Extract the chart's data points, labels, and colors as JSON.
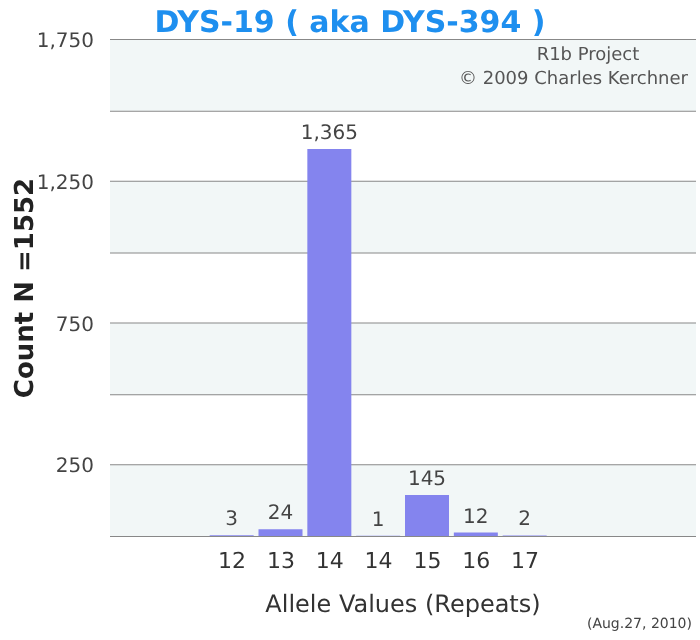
{
  "chart_data": {
    "type": "bar",
    "title": "DYS-19 ( aka DYS-394 )",
    "xlabel": "Allele Values (Repeats)",
    "ylabel": "Count N =1552",
    "annotations": [
      "R1b Project",
      "© 2009 Charles Kerchner",
      "(Aug.27, 2010)"
    ],
    "categories": [
      null,
      null,
      "12",
      "13",
      "14",
      "14",
      "15",
      "16",
      "17",
      null,
      null,
      null
    ],
    "values": [
      null,
      null,
      3,
      24,
      1365,
      1,
      145,
      12,
      2,
      null,
      null,
      null
    ],
    "value_labels": [
      null,
      null,
      "3",
      "24",
      "1,365",
      "1",
      "145",
      "12",
      "2",
      null,
      null,
      null
    ],
    "color": "#8484ee",
    "ylim": [
      0,
      1750
    ],
    "yticks": [
      {
        "value": 0,
        "label": null
      },
      250,
      {
        "value": 500,
        "label": null
      },
      750,
      {
        "value": 1000,
        "label": null
      },
      {
        "value": 1250,
        "label": "1,250"
      },
      {
        "value": 1500,
        "label": null
      },
      {
        "value": 1750,
        "label": "1,750"
      }
    ],
    "grid": "y"
  }
}
